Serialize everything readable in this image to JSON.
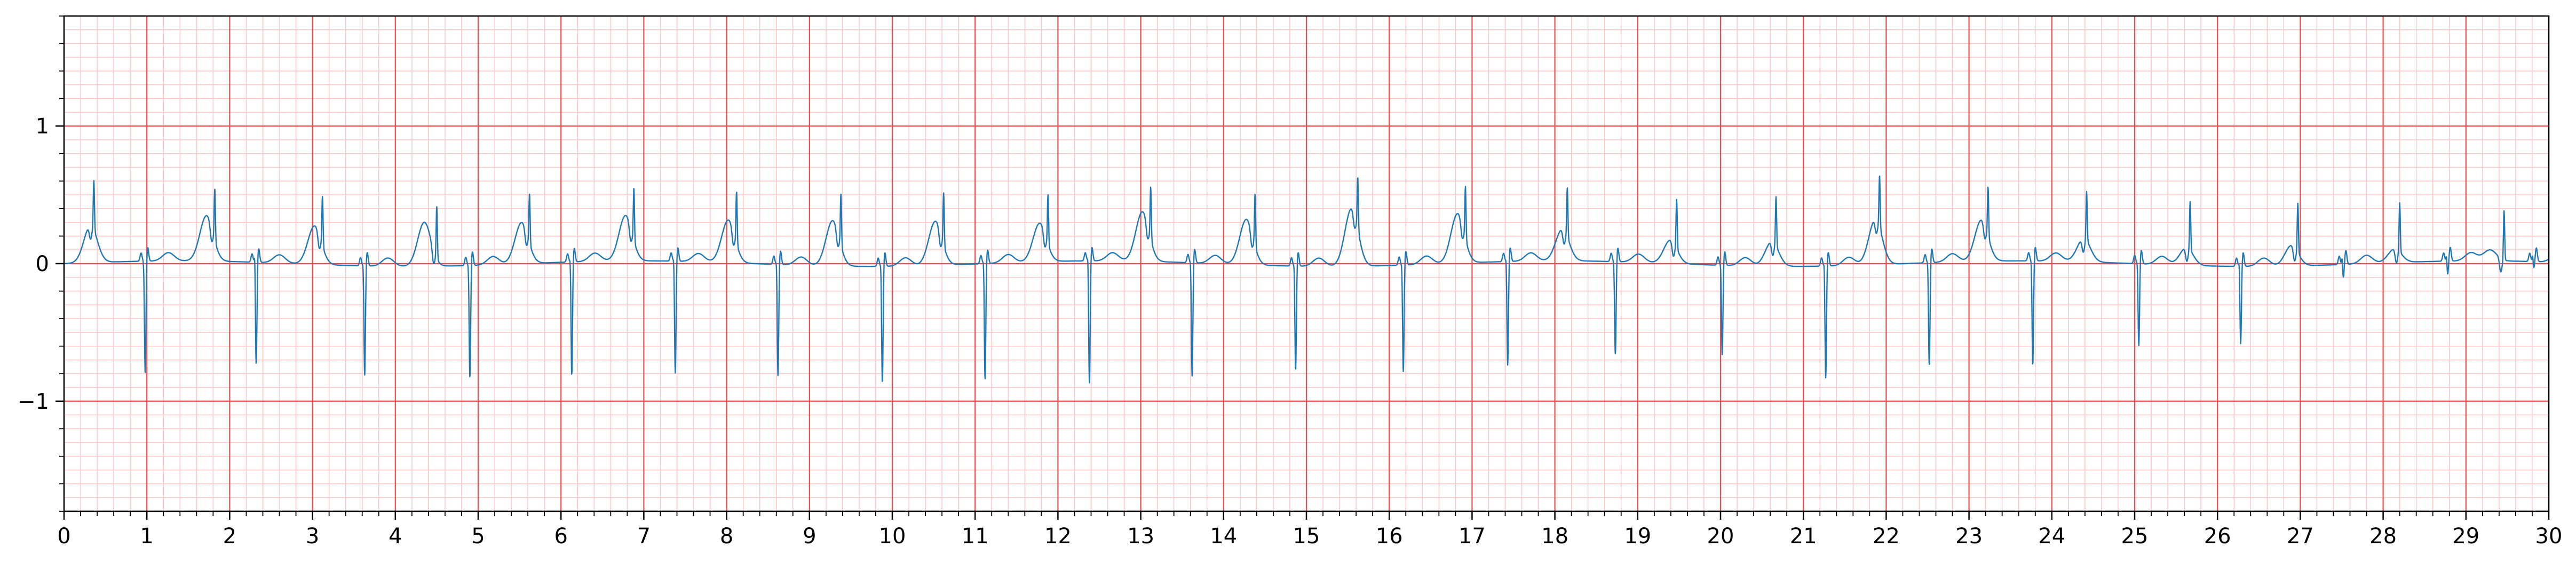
{
  "chart_data": {
    "type": "line",
    "title": "",
    "xlabel": "",
    "ylabel": "",
    "xlim": [
      0,
      30
    ],
    "ylim": [
      -1.8,
      1.8
    ],
    "grid": true,
    "grid_style": "ECG paper (major and minor)",
    "x_ticks": [
      "0",
      "1",
      "2",
      "3",
      "4",
      "5",
      "6",
      "7",
      "8",
      "9",
      "10",
      "11",
      "12",
      "13",
      "14",
      "15",
      "16",
      "17",
      "18",
      "19",
      "20",
      "21",
      "22",
      "23",
      "24",
      "25",
      "26",
      "27",
      "28",
      "29",
      "30"
    ],
    "y_ticks": [
      {
        "value": -1,
        "label": "−1"
      },
      {
        "value": 0,
        "label": "0"
      },
      {
        "value": 1,
        "label": "1"
      }
    ],
    "colors": {
      "line": "#1f77b4",
      "grid_major": "#f04a4a",
      "grid_minor": "#ffc4c4"
    },
    "beats": [
      {
        "t": 0.98,
        "r": 0.02,
        "s": -0.82,
        "x": 0.36,
        "tw": 0.27
      },
      {
        "t": 2.32,
        "r": 0.12,
        "s": -0.75,
        "x": 1.82,
        "tw": 0.33
      },
      {
        "t": 3.63,
        "r": 0.06,
        "s": -0.8,
        "x": 3.12,
        "tw": 0.28
      },
      {
        "t": 4.9,
        "r": 0.05,
        "s": -0.82,
        "x": 4.5,
        "tw": 0.32
      },
      {
        "t": 6.13,
        "r": 0.08,
        "s": -0.83,
        "x": 5.62,
        "tw": 0.3
      },
      {
        "t": 7.38,
        "r": 0.07,
        "s": -0.82,
        "x": 6.88,
        "tw": 0.33
      },
      {
        "t": 8.62,
        "r": 0.08,
        "s": -0.82,
        "x": 8.12,
        "tw": 0.31
      },
      {
        "t": 9.88,
        "r": 0.07,
        "s": -0.85,
        "x": 9.38,
        "tw": 0.33
      },
      {
        "t": 11.12,
        "r": 0.08,
        "s": -0.85,
        "x": 10.62,
        "tw": 0.32
      },
      {
        "t": 12.38,
        "r": 0.1,
        "s": -0.9,
        "x": 11.88,
        "tw": 0.28
      },
      {
        "t": 13.62,
        "r": 0.06,
        "s": -0.83,
        "x": 13.12,
        "tw": 0.36
      },
      {
        "t": 14.87,
        "r": 0.06,
        "s": -0.76,
        "x": 14.38,
        "tw": 0.33
      },
      {
        "t": 16.17,
        "r": 0.05,
        "s": -0.78,
        "x": 15.62,
        "tw": 0.42
      },
      {
        "t": 17.43,
        "r": 0.08,
        "s": -0.76,
        "x": 16.92,
        "tw": 0.36
      },
      {
        "t": 18.73,
        "r": 0.03,
        "s": -0.68,
        "x": 18.15,
        "tw": 0.23
      },
      {
        "t": 20.02,
        "r": 0.05,
        "s": -0.66,
        "x": 19.47,
        "tw": 0.17
      },
      {
        "t": 21.27,
        "r": 0.08,
        "s": -0.82,
        "x": 20.67,
        "tw": 0.18
      },
      {
        "t": 22.52,
        "r": 0.05,
        "s": -0.75,
        "x": 21.92,
        "tw": 0.33
      },
      {
        "t": 23.77,
        "r": 0.05,
        "s": -0.76,
        "x": 23.23,
        "tw": 0.3
      },
      {
        "t": 25.05,
        "r": 0.05,
        "s": -0.6,
        "x": 24.42,
        "tw": 0.17
      },
      {
        "t": 26.28,
        "r": 0.08,
        "s": -0.57,
        "x": 25.67,
        "tw": 0.13
      },
      {
        "t": 27.52,
        "r": 0.06,
        "s": -0.1,
        "x": 26.97,
        "tw": 0.15
      },
      {
        "t": 28.78,
        "r": 0.05,
        "s": -0.1,
        "x": 28.2,
        "tw": 0.1
      },
      {
        "t": 29.82,
        "r": 0.05,
        "s": -0.05,
        "x": 29.46,
        "tw": 0.08
      }
    ]
  }
}
